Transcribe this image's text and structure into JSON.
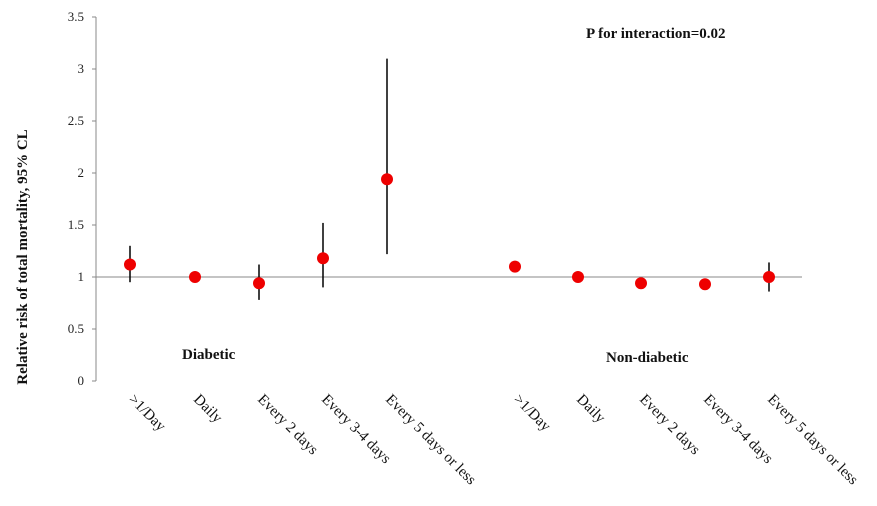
{
  "chart_data": {
    "type": "scatter",
    "title": "",
    "ylabel": "Relative risk of total mortality, 95% CL",
    "xlabel": "",
    "ylim": [
      0,
      3.5
    ],
    "yticks": [
      "0",
      "0.5",
      "1",
      "1.5",
      "2",
      "2.5",
      "3",
      "3.5"
    ],
    "reference_line": 1,
    "grid": false,
    "marker_color": "#ee0000",
    "errorbar_color": "#000000",
    "annotation": "P for interaction=0.02",
    "groups": [
      {
        "label": "Diabetic",
        "points": [
          {
            "category": ">1/Day",
            "rr": 1.12,
            "lower": 0.95,
            "upper": 1.3
          },
          {
            "category": "Daily",
            "rr": 1.0,
            "lower": null,
            "upper": null
          },
          {
            "category": "Every 2 days",
            "rr": 0.94,
            "lower": 0.78,
            "upper": 1.12
          },
          {
            "category": "Every 3-4 days",
            "rr": 1.18,
            "lower": 0.9,
            "upper": 1.52
          },
          {
            "category": "Every 5 days or less",
            "rr": 1.94,
            "lower": 1.22,
            "upper": 3.1
          }
        ]
      },
      {
        "label": "Non-diabetic",
        "points": [
          {
            "category": ">1/Day",
            "rr": 1.1,
            "lower": null,
            "upper": null
          },
          {
            "category": "Daily",
            "rr": 1.0,
            "lower": null,
            "upper": null
          },
          {
            "category": "Every 2 days",
            "rr": 0.94,
            "lower": null,
            "upper": null
          },
          {
            "category": "Every 3-4 days",
            "rr": 0.93,
            "lower": null,
            "upper": null
          },
          {
            "category": "Every 5 days or less",
            "rr": 1.0,
            "lower": 0.86,
            "upper": 1.14
          }
        ]
      }
    ]
  }
}
